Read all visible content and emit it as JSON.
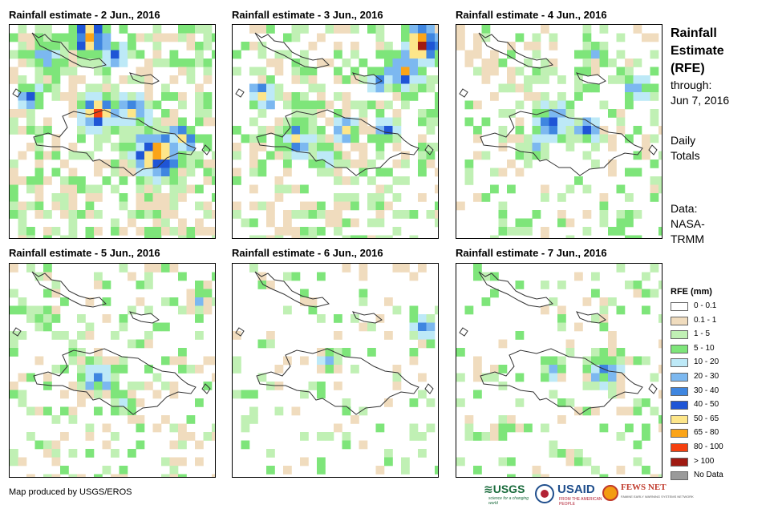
{
  "panels": [
    {
      "title": "Rainfall estimate - 2 Jun., 2016"
    },
    {
      "title": "Rainfall estimate - 3 Jun., 2016"
    },
    {
      "title": "Rainfall estimate - 4 Jun., 2016"
    },
    {
      "title": "Rainfall estimate - 5 Jun., 2016"
    },
    {
      "title": "Rainfall estimate - 6 Jun., 2016"
    },
    {
      "title": "Rainfall estimate - 7 Jun., 2016"
    }
  ],
  "side": {
    "title_lines": [
      "Rainfall",
      "Estimate",
      "(RFE)"
    ],
    "through_label": "through:",
    "through_date": "Jun 7, 2016",
    "daily_lines": [
      "Daily",
      "Totals"
    ],
    "data_lines": [
      "Data:",
      "NASA-",
      "TRMM"
    ]
  },
  "legend": {
    "title": "RFE (mm)",
    "items": [
      {
        "label": "0 - 0.1",
        "color": "#ffffff"
      },
      {
        "label": "0.1 - 1",
        "color": "#f0dcbe"
      },
      {
        "label": "1 - 5",
        "color": "#c0f0b4"
      },
      {
        "label": "5 - 10",
        "color": "#7ee57a"
      },
      {
        "label": "10 - 20",
        "color": "#bde9f7"
      },
      {
        "label": "20 - 30",
        "color": "#7cb8f0"
      },
      {
        "label": "30 - 40",
        "color": "#3f86e0"
      },
      {
        "label": "40 - 50",
        "color": "#1f55d6"
      },
      {
        "label": "50 - 65",
        "color": "#fde68a"
      },
      {
        "label": "65 - 80",
        "color": "#fba418"
      },
      {
        "label": "80 - 100",
        "color": "#f5400f"
      },
      {
        "label": "> 100",
        "color": "#a01a12"
      },
      {
        "label": "No Data",
        "color": "#9a9a9a"
      }
    ]
  },
  "footer": {
    "credit": "Map produced by USGS/EROS"
  },
  "logos": {
    "usgs": "≋USGS",
    "usgs_tagline": "science for a changing world",
    "usaid": "USAID",
    "usaid_tagline": "FROM THE AMERICAN PEOPLE",
    "fews": "FEWS NET",
    "fews_tagline": "FAMINE EARLY WARNING SYSTEMS NETWORK"
  }
}
